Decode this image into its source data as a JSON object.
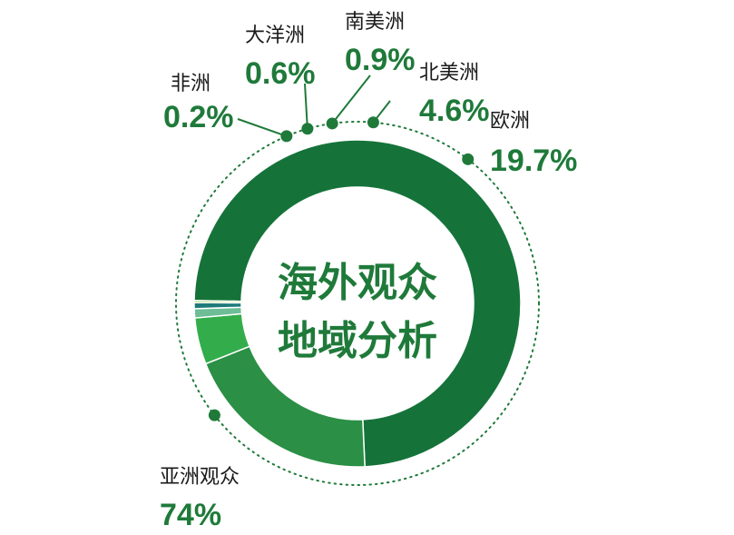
{
  "chart_data": {
    "type": "pie",
    "title": "海外观众地域分析",
    "title_lines": [
      "海外观众",
      "地域分析"
    ],
    "categories": [
      "亚洲观众",
      "欧洲",
      "北美洲",
      "南美洲",
      "大洋洲",
      "非洲"
    ],
    "values": [
      74,
      19.7,
      4.6,
      0.9,
      0.6,
      0.2
    ],
    "value_labels": [
      "74%",
      "19.7%",
      "4.6%",
      "0.9%",
      "0.6%",
      "0.2%"
    ],
    "colors": [
      "#15733a",
      "#2b8f45",
      "#33ad4b",
      "#6dbd97",
      "#1e7a7a",
      "#8dc63f"
    ],
    "donut": true,
    "legend": "none"
  }
}
